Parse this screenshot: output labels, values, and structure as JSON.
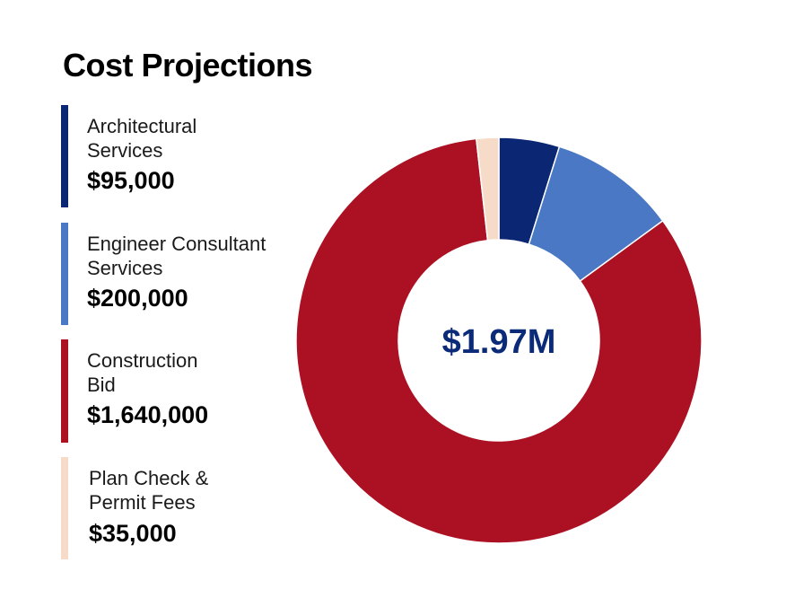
{
  "title": "Cost Projections",
  "center_label": "$1.97M",
  "colors": {
    "center_text": "#0b2a78",
    "ring_gap": "#ffffff"
  },
  "chart_data": {
    "type": "pie",
    "style": "donut",
    "title": "Cost Projections",
    "categories": [
      "Architectural Services",
      "Engineer Consultant Services",
      "Construction Bid",
      "Plan Check & Permit Fees"
    ],
    "values": [
      95000,
      200000,
      1640000,
      35000
    ],
    "colors": [
      "#0b2672",
      "#4a78c4",
      "#ac1123",
      "#f6dcc8"
    ],
    "total_label": "$1.97M",
    "legend": "left"
  },
  "legend": [
    {
      "line1": "Architectural",
      "line2": "Services",
      "value": "$95,000",
      "color": "#0b2672"
    },
    {
      "line1": "Engineer Consultant",
      "line2": "Services",
      "value": "$200,000",
      "color": "#4a78c4"
    },
    {
      "line1": "Construction",
      "line2": "Bid",
      "value": "$1,640,000",
      "color": "#ac1123"
    },
    {
      "line1": "Plan Check &",
      "line2": "Permit Fees",
      "value": "$35,000",
      "color": "#f6dcc8"
    }
  ]
}
